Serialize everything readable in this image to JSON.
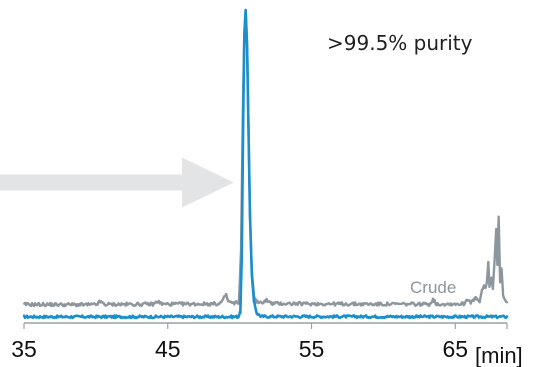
{
  "chart_data": {
    "type": "line",
    "title": "",
    "xlabel": "[min]",
    "ylabel": "",
    "xlim": [
      35,
      68.6
    ],
    "ylim": [
      0,
      100
    ],
    "x_ticks": [
      35,
      45,
      55,
      65
    ],
    "x_tick_labels": [
      "35",
      "45",
      "55",
      "65"
    ],
    "grid": false,
    "legend": "none",
    "annotation": ">99.5% purity",
    "arrow": {
      "color": "#e3e4e6",
      "direction": "right",
      "x_from": 35,
      "x_to": 50.3,
      "y": 44
    },
    "colors": {
      "purified": "#1a8fcc",
      "crude": "#8c969c",
      "axis": "#9aa0a4"
    },
    "series": [
      {
        "label": "",
        "color": "#1a8fcc",
        "baseline": 0.4,
        "noise": 0.4,
        "points": [
          [
            35,
            0.4
          ],
          [
            49.9,
            0.4
          ],
          [
            50.05,
            2
          ],
          [
            50.15,
            20
          ],
          [
            50.25,
            65
          ],
          [
            50.33,
            92
          ],
          [
            50.42,
            100
          ],
          [
            50.52,
            88
          ],
          [
            50.62,
            60
          ],
          [
            50.72,
            33
          ],
          [
            50.85,
            14
          ],
          [
            51.0,
            5
          ],
          [
            51.2,
            1.5
          ],
          [
            51.5,
            0.5
          ],
          [
            68.6,
            0.4
          ]
        ]
      },
      {
        "label": "Crude",
        "color": "#8c969c",
        "baseline": 4.4,
        "noise": 0.55,
        "points": [
          [
            35,
            4.4
          ],
          [
            40.0,
            4.3
          ],
          [
            40.3,
            5.3
          ],
          [
            40.6,
            4.4
          ],
          [
            44.0,
            4.5
          ],
          [
            44.3,
            5.4
          ],
          [
            44.6,
            4.5
          ],
          [
            48.6,
            4.6
          ],
          [
            48.85,
            5.8
          ],
          [
            49.05,
            7.8
          ],
          [
            49.2,
            5.4
          ],
          [
            49.6,
            4.7
          ],
          [
            49.95,
            5.2
          ],
          [
            50.1,
            22
          ],
          [
            50.22,
            65
          ],
          [
            50.32,
            92
          ],
          [
            50.42,
            100
          ],
          [
            50.52,
            89
          ],
          [
            50.62,
            62
          ],
          [
            50.72,
            34
          ],
          [
            50.85,
            15
          ],
          [
            51.0,
            7
          ],
          [
            51.2,
            5.3
          ],
          [
            51.5,
            4.8
          ],
          [
            51.85,
            5.9
          ],
          [
            52.2,
            4.7
          ],
          [
            59.0,
            4.5
          ],
          [
            63.2,
            4.5
          ],
          [
            63.45,
            6.0
          ],
          [
            63.7,
            4.5
          ],
          [
            65.6,
            4.6
          ],
          [
            65.85,
            6.2
          ],
          [
            66.1,
            5.1
          ],
          [
            66.45,
            6.4
          ],
          [
            66.7,
            5.1
          ],
          [
            66.85,
            8.6
          ],
          [
            67.0,
            10.6
          ],
          [
            67.1,
            9.6
          ],
          [
            67.2,
            11.6
          ],
          [
            67.3,
            18.2
          ],
          [
            67.38,
            10.1
          ],
          [
            67.52,
            13.1
          ],
          [
            67.62,
            9.6
          ],
          [
            67.75,
            19.8
          ],
          [
            67.85,
            28.9
          ],
          [
            67.93,
            17.2
          ],
          [
            68.02,
            32.9
          ],
          [
            68.12,
            11.6
          ],
          [
            68.22,
            16.1
          ],
          [
            68.32,
            8.1
          ],
          [
            68.42,
            6.1
          ],
          [
            68.6,
            5.1
          ]
        ]
      }
    ]
  }
}
